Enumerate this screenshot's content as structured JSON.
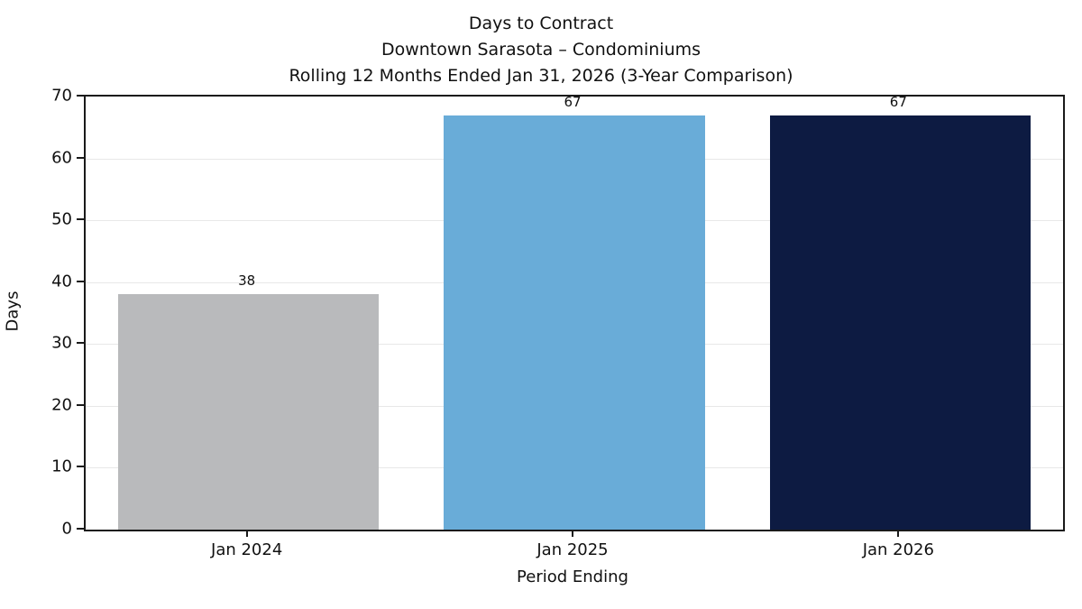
{
  "chart_data": {
    "type": "bar",
    "title": "Days to Contract",
    "subtitle": "Downtown Sarasota – Condominiums",
    "subtitle2": "Rolling 12 Months Ended Jan 31, 2026 (3-Year Comparison)",
    "categories": [
      "Jan 2024",
      "Jan 2025",
      "Jan 2026"
    ],
    "values": [
      38,
      67,
      67
    ],
    "bar_colors": [
      "#b9babc",
      "#69acd8",
      "#0d1b42"
    ],
    "data_labels": [
      "38",
      "67",
      "67"
    ],
    "xlabel": "Period Ending",
    "ylabel": "Days",
    "ylim": [
      0,
      70
    ],
    "yticks": [
      0,
      10,
      20,
      30,
      40,
      50,
      60,
      70
    ],
    "grid": "horizontal",
    "legend": "none",
    "background": "#ffffff",
    "spine_color": "#1a1a1a",
    "gridline_color": "#e8e8e8"
  }
}
